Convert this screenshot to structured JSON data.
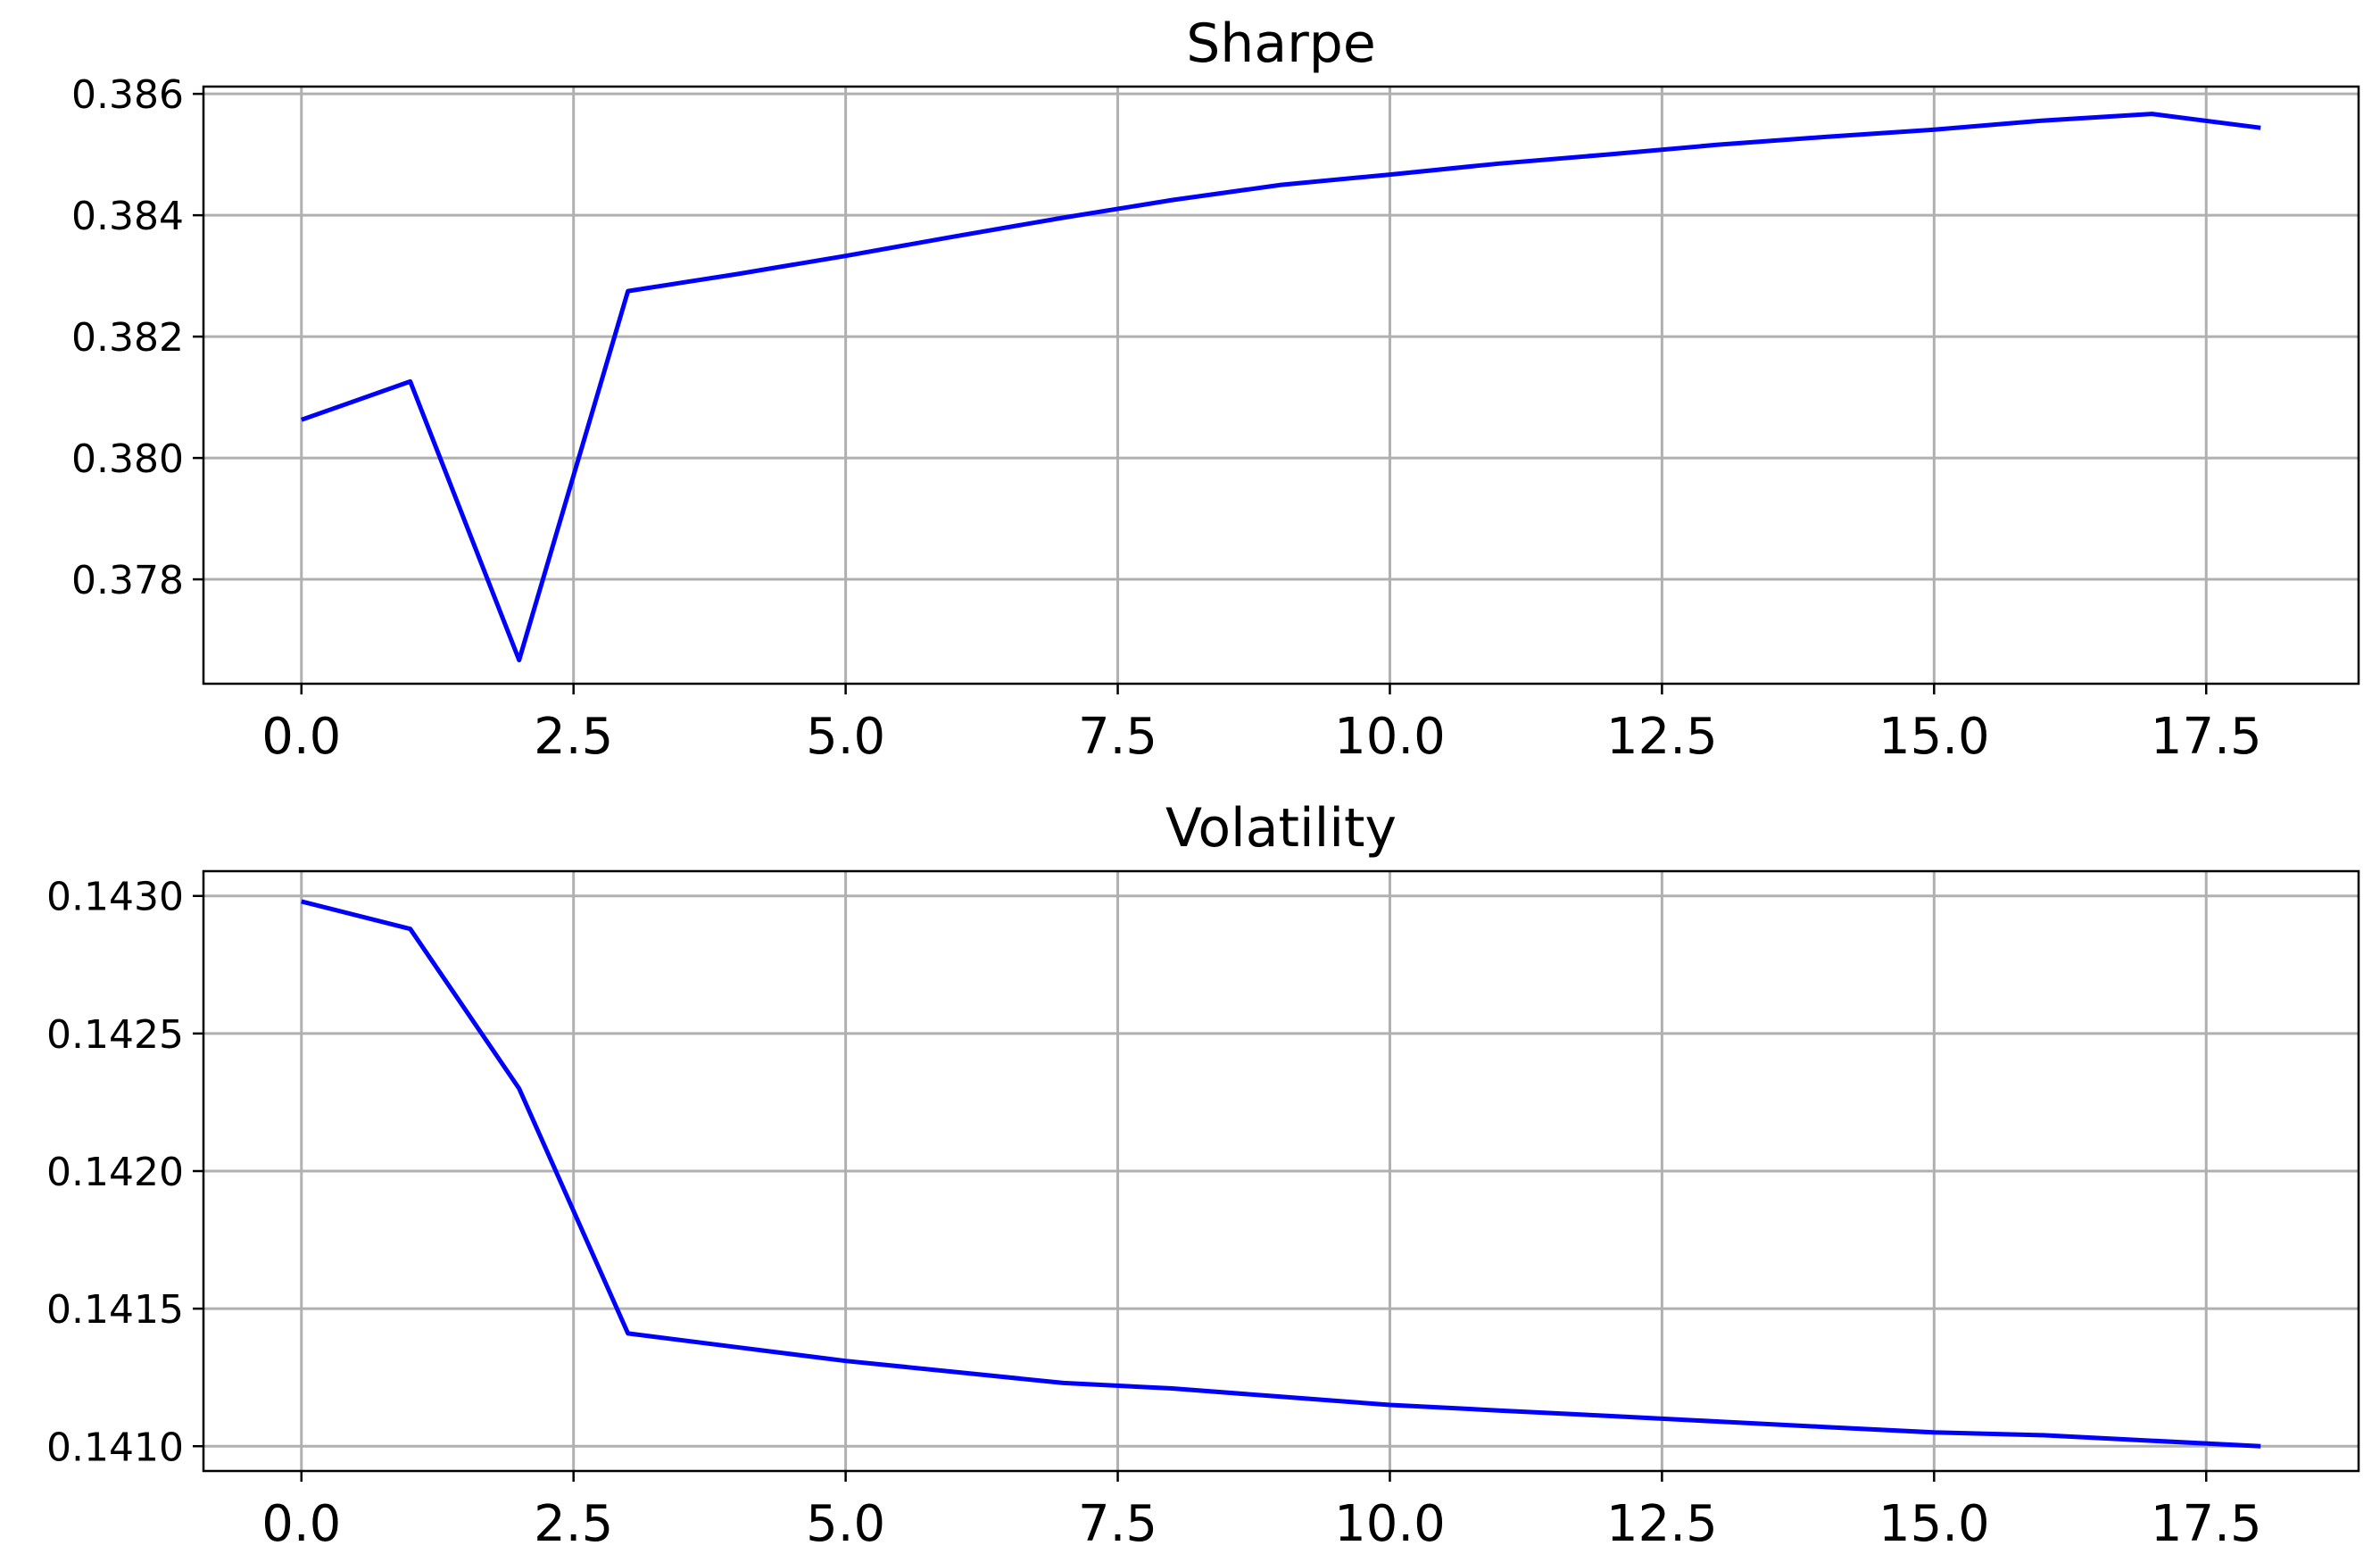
{
  "chart_data": [
    {
      "type": "line",
      "title": "Sharpe",
      "xlabel": "",
      "ylabel": "",
      "xlim": [
        -0.9,
        18.9
      ],
      "ylim": [
        0.37628,
        0.38612
      ],
      "x_ticks": [
        0.0,
        2.5,
        5.0,
        7.5,
        10.0,
        12.5,
        15.0,
        17.5
      ],
      "x_tick_labels": [
        "0.0",
        "2.5",
        "5.0",
        "7.5",
        "10.0",
        "12.5",
        "15.0",
        "17.5"
      ],
      "y_ticks": [
        0.378,
        0.38,
        0.382,
        0.384,
        0.386
      ],
      "y_tick_labels": [
        "0.378",
        "0.380",
        "0.382",
        "0.384",
        "0.386"
      ],
      "grid": true,
      "color": "#0000ff",
      "x": [
        0,
        1,
        2,
        3,
        4,
        5,
        6,
        7,
        8,
        9,
        10,
        11,
        12,
        13,
        14,
        15,
        16,
        17,
        18
      ],
      "values": [
        0.38063,
        0.38126,
        0.37667,
        0.38275,
        0.38303,
        0.38333,
        0.38365,
        0.38396,
        0.38425,
        0.3845,
        0.38467,
        0.38485,
        0.385,
        0.38516,
        0.38529,
        0.38541,
        0.38556,
        0.38567,
        0.38544
      ]
    },
    {
      "type": "line",
      "title": "Volatility",
      "xlabel": "",
      "ylabel": "",
      "xlim": [
        -0.9,
        18.9
      ],
      "ylim": [
        0.14091,
        0.14309
      ],
      "x_ticks": [
        0.0,
        2.5,
        5.0,
        7.5,
        10.0,
        12.5,
        15.0,
        17.5
      ],
      "x_tick_labels": [
        "0.0",
        "2.5",
        "5.0",
        "7.5",
        "10.0",
        "12.5",
        "15.0",
        "17.5"
      ],
      "y_ticks": [
        0.141,
        0.1415,
        0.142,
        0.1425,
        0.143
      ],
      "y_tick_labels": [
        "0.1410",
        "0.1415",
        "0.1420",
        "0.1425",
        "0.1430"
      ],
      "grid": true,
      "color": "#0000ff",
      "x": [
        0,
        1,
        2,
        3,
        4,
        5,
        6,
        7,
        8,
        9,
        10,
        11,
        12,
        13,
        14,
        15,
        16,
        17,
        18
      ],
      "values": [
        0.14298,
        0.14288,
        0.1423,
        0.14141,
        0.14136,
        0.14131,
        0.14127,
        0.14123,
        0.14121,
        0.14118,
        0.14115,
        0.14113,
        0.14111,
        0.14109,
        0.14107,
        0.14105,
        0.14104,
        0.14102,
        0.141
      ]
    }
  ]
}
